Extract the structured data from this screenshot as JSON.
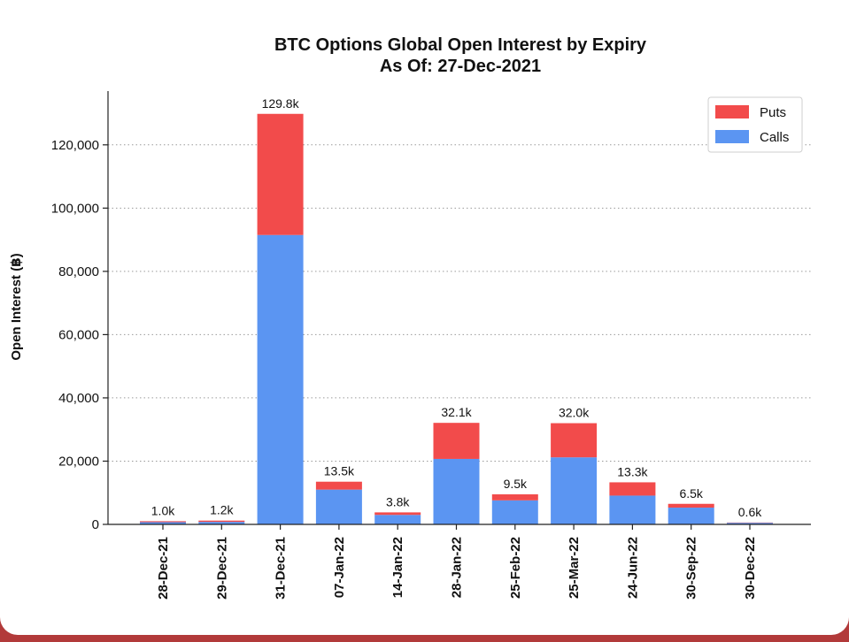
{
  "chart_data": {
    "type": "bar",
    "stacked": true,
    "title": "BTC Options Global Open Interest by Expiry",
    "subtitle": "As Of: 27-Dec-2021",
    "xlabel": "",
    "ylabel": "Open Interest (฿)",
    "ylim": [
      0,
      137000
    ],
    "yticks": [
      0,
      20000,
      40000,
      60000,
      80000,
      100000,
      120000
    ],
    "ytick_labels": [
      "0",
      "20,000",
      "40,000",
      "60,000",
      "80,000",
      "100,000",
      "120,000"
    ],
    "grid": "horizontal dotted",
    "legend_position": "top-right",
    "categories": [
      "28-Dec-21",
      "29-Dec-21",
      "31-Dec-21",
      "07-Jan-22",
      "14-Jan-22",
      "28-Jan-22",
      "25-Feb-22",
      "25-Mar-22",
      "24-Jun-22",
      "30-Sep-22",
      "30-Dec-22"
    ],
    "series": [
      {
        "name": "Calls",
        "color": "#5b95f2",
        "values": [
          700,
          800,
          91500,
          11000,
          3000,
          20700,
          7600,
          21200,
          9100,
          5300,
          500
        ]
      },
      {
        "name": "Puts",
        "color": "#f24b4b",
        "values": [
          300,
          400,
          38300,
          2500,
          800,
          11400,
          1900,
          10800,
          4200,
          1200,
          100
        ]
      }
    ],
    "totals": [
      1000,
      1200,
      129800,
      13500,
      3800,
      32100,
      9500,
      32000,
      13300,
      6500,
      600
    ],
    "total_labels": [
      "1.0k",
      "1.2k",
      "129.8k",
      "13.5k",
      "3.8k",
      "32.1k",
      "9.5k",
      "32.0k",
      "13.3k",
      "6.5k",
      "0.6k"
    ],
    "legend_entries": [
      "Puts",
      "Calls"
    ]
  }
}
